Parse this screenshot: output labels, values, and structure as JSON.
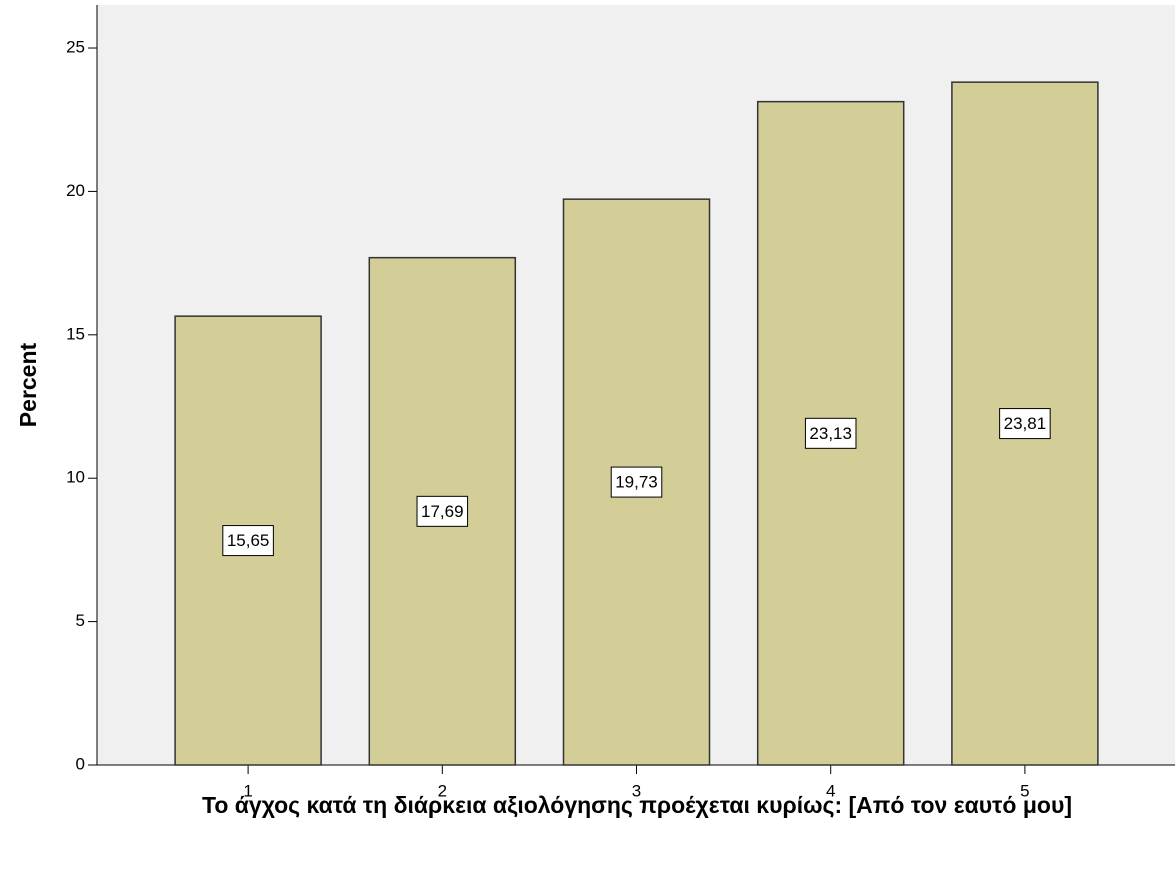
{
  "chart_data": {
    "type": "bar",
    "x_label": "Το άγχος κατά τη διάρκεια αξιολόγησης προέχεται κυρίως: [Από τον εαυτό μου]",
    "y_label": "Percent",
    "categories": [
      "1",
      "2",
      "3",
      "4",
      "5"
    ],
    "values": [
      15.65,
      17.69,
      19.73,
      23.13,
      23.81
    ],
    "value_labels": [
      "15,65",
      "17,69",
      "19,73",
      "23,13",
      "23,81"
    ],
    "color": "#d3ce97",
    "ylim": [
      0,
      26.5
    ],
    "yticks": [
      0,
      5,
      10,
      15,
      20,
      25
    ]
  }
}
